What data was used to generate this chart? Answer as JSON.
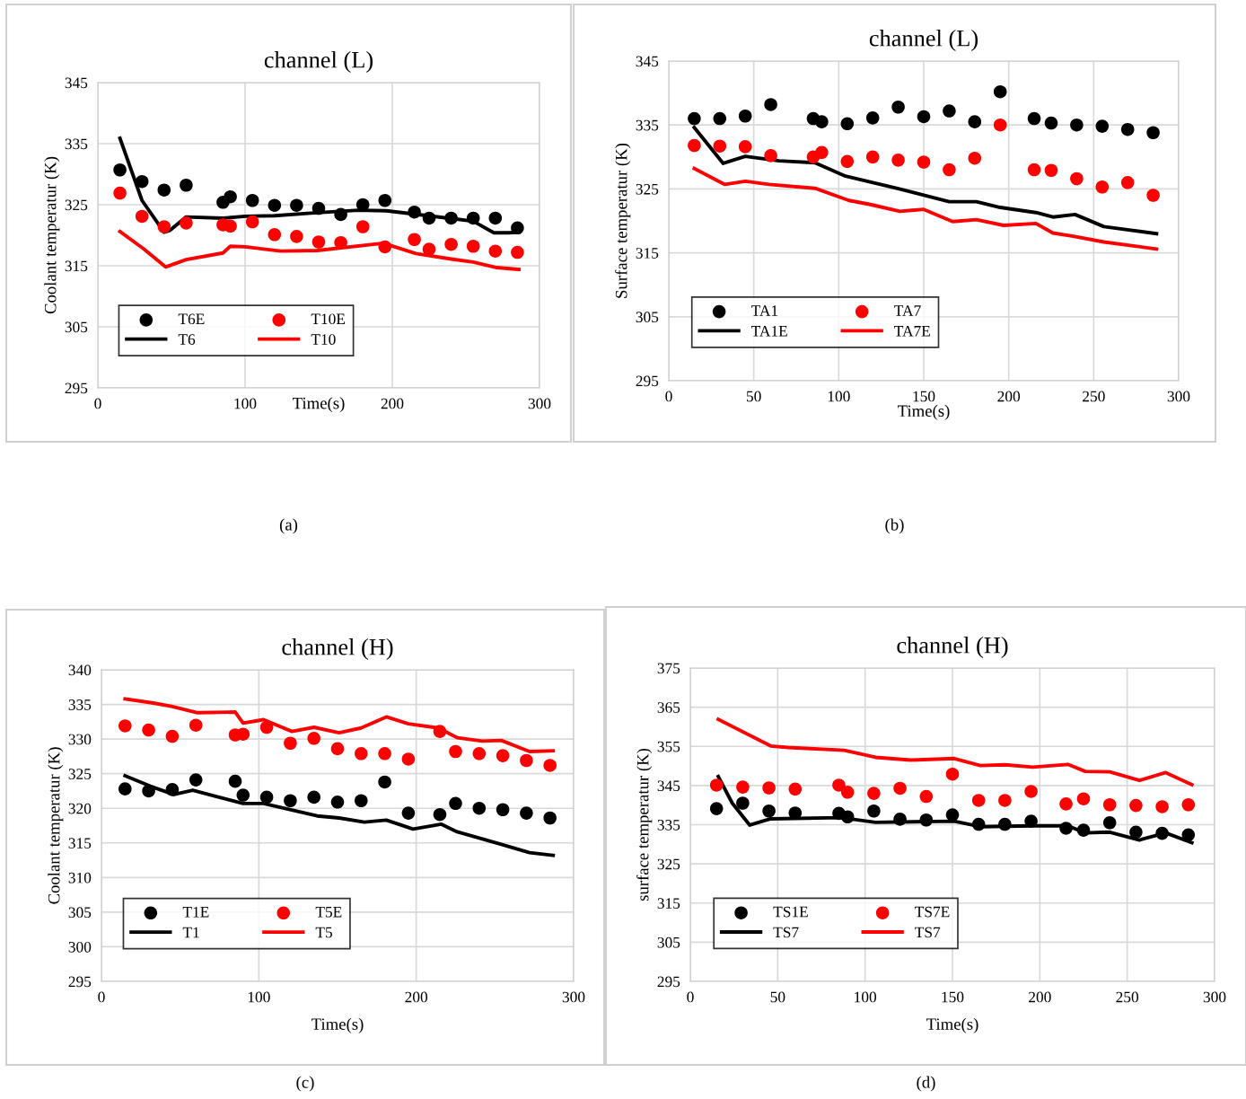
{
  "chart_data": [
    {
      "type": "scatter",
      "title": "channel (L)",
      "xlabel": "Time(s)",
      "ylabel": "Coolant temperatur (K)",
      "xlim": [
        0,
        300
      ],
      "xticks": [
        0,
        100,
        200,
        300
      ],
      "ylim": [
        295,
        345
      ],
      "yticks": [
        295,
        305,
        315,
        325,
        335,
        345
      ],
      "grid": true,
      "legend": "lower left",
      "annotations": [
        "(a)"
      ],
      "series": [
        {
          "name": "T6E",
          "marker": "circle",
          "color": "#000000",
          "x": [
            15,
            30,
            45,
            60,
            85,
            90,
            105,
            120,
            135,
            150,
            165,
            180,
            195,
            215,
            225,
            240,
            255,
            270,
            285
          ],
          "values": [
            330.7,
            328.8,
            327.4,
            328.2,
            325.4,
            326.3,
            325.7,
            324.9,
            324.9,
            324.4,
            323.4,
            325.0,
            325.7,
            323.8,
            322.8,
            322.8,
            322.8,
            322.8,
            321.2
          ]
        },
        {
          "name": "T10E",
          "marker": "circle",
          "color": "#ff0000",
          "x": [
            15,
            30,
            45,
            60,
            85,
            90,
            105,
            120,
            135,
            150,
            165,
            180,
            195,
            215,
            225,
            240,
            255,
            270,
            285
          ],
          "values": [
            326.9,
            323.1,
            321.4,
            322.0,
            321.7,
            321.5,
            322.2,
            320.1,
            319.8,
            318.9,
            318.8,
            321.4,
            318.1,
            319.3,
            317.7,
            318.5,
            318.2,
            317.4,
            317.2
          ]
        },
        {
          "name": "T6",
          "type": "line",
          "marker": "none",
          "color": "#000000",
          "x": [
            15,
            30,
            45,
            49,
            60,
            85,
            100,
            120,
            149,
            177,
            196,
            214,
            255,
            269,
            279,
            286
          ],
          "values": [
            335.9,
            325.7,
            320.5,
            320.8,
            323.0,
            322.8,
            323.1,
            323.2,
            323.7,
            324.1,
            324.0,
            323.5,
            322.3,
            320.4,
            320.4,
            320.5
          ]
        },
        {
          "name": "T10",
          "type": "line",
          "marker": "none",
          "color": "#ff0000",
          "x": [
            15,
            31,
            46,
            60,
            85,
            90,
            100,
            124,
            149,
            194,
            216,
            240,
            255,
            271,
            286
          ],
          "values": [
            320.6,
            317.8,
            314.8,
            316.0,
            317.1,
            318.2,
            318.1,
            317.4,
            317.5,
            318.7,
            317.0,
            316.1,
            315.6,
            314.7,
            314.4
          ]
        }
      ]
    },
    {
      "type": "scatter",
      "title": "channel (L)",
      "xlabel": "Time(s)",
      "ylabel": "Surface temperatur (K)",
      "xlim": [
        0,
        300
      ],
      "xticks": [
        0,
        50,
        100,
        150,
        200,
        250,
        300
      ],
      "ylim": [
        295,
        345
      ],
      "yticks": [
        295,
        305,
        315,
        325,
        335,
        345
      ],
      "grid": true,
      "legend": "lower left",
      "annotations": [
        "(b)"
      ],
      "series": [
        {
          "name": "TA1",
          "marker": "circle",
          "color": "#000000",
          "x": [
            15,
            30,
            45,
            60,
            85,
            90,
            105,
            120,
            135,
            150,
            165,
            180,
            195,
            215,
            225,
            240,
            255,
            270,
            285
          ],
          "values": [
            336.0,
            336.0,
            336.4,
            338.2,
            336.0,
            335.5,
            335.2,
            336.1,
            337.8,
            336.3,
            337.2,
            335.5,
            340.2,
            336.0,
            335.3,
            335.0,
            334.8,
            334.3,
            333.8
          ]
        },
        {
          "name": "TA7",
          "marker": "circle",
          "color": "#ff0000",
          "x": [
            15,
            30,
            45,
            60,
            85,
            90,
            105,
            120,
            135,
            150,
            165,
            180,
            195,
            215,
            225,
            240,
            255,
            270,
            285
          ],
          "values": [
            331.8,
            331.7,
            331.6,
            330.2,
            330.0,
            330.7,
            329.3,
            330.0,
            329.5,
            329.2,
            328.0,
            329.8,
            335.0,
            328.0,
            327.9,
            326.6,
            325.3,
            326.0,
            324.0
          ]
        },
        {
          "name": "TA1E",
          "type": "line",
          "marker": "none",
          "color": "#000000",
          "x": [
            15,
            32,
            45,
            65,
            86,
            104,
            134,
            165,
            181,
            195,
            216,
            226,
            239,
            256,
            287
          ],
          "values": [
            334.6,
            329.0,
            330.1,
            329.4,
            329.1,
            327.0,
            325.1,
            323.0,
            323.0,
            322.1,
            321.3,
            320.6,
            321.0,
            319.1,
            318.0
          ]
        },
        {
          "name": "TA7E",
          "type": "line",
          "marker": "none",
          "color": "#ff0000",
          "x": [
            15,
            33,
            45,
            59,
            86,
            106,
            118,
            136,
            150,
            167,
            181,
            197,
            216,
            226,
            238,
            256,
            287
          ],
          "values": [
            328.2,
            325.7,
            326.2,
            325.7,
            325.1,
            323.2,
            322.6,
            321.5,
            321.8,
            319.9,
            320.2,
            319.3,
            319.6,
            318.1,
            317.6,
            316.7,
            315.6
          ]
        }
      ]
    },
    {
      "type": "scatter",
      "title": "channel (H)",
      "xlabel": "Time(s)",
      "ylabel": "Coolant temperatur (K)",
      "xlim": [
        0,
        300
      ],
      "xticks": [
        0,
        100,
        200,
        300
      ],
      "ylim": [
        295,
        340
      ],
      "yticks": [
        295,
        300,
        305,
        310,
        315,
        320,
        325,
        330,
        335,
        340
      ],
      "grid": true,
      "legend": "lower left",
      "annotations": [
        "(c)"
      ],
      "series": [
        {
          "name": "T1E",
          "marker": "circle",
          "color": "#000000",
          "x": [
            15,
            30,
            45,
            60,
            85,
            90,
            105,
            120,
            135,
            150,
            165,
            180,
            195,
            215,
            225,
            240,
            255,
            270,
            285
          ],
          "values": [
            322.8,
            322.5,
            322.7,
            324.1,
            323.9,
            321.9,
            321.6,
            321.1,
            321.6,
            320.9,
            321.1,
            323.8,
            319.3,
            319.1,
            320.7,
            320.0,
            319.8,
            319.3,
            318.6
          ]
        },
        {
          "name": "T5E",
          "marker": "circle",
          "color": "#ff0000",
          "x": [
            15,
            30,
            45,
            60,
            85,
            90,
            105,
            120,
            135,
            150,
            165,
            180,
            195,
            215,
            225,
            240,
            255,
            270,
            285
          ],
          "values": [
            331.9,
            331.3,
            330.4,
            332.0,
            330.6,
            330.7,
            331.7,
            329.4,
            330.1,
            328.6,
            327.9,
            327.9,
            327.1,
            331.1,
            328.2,
            327.9,
            327.6,
            326.9,
            326.2
          ]
        },
        {
          "name": "T1",
          "type": "line",
          "marker": "none",
          "color": "#000000",
          "x": [
            15,
            31,
            46,
            58,
            73,
            90,
            103,
            137,
            151,
            167,
            181,
            198,
            216,
            226,
            254,
            272,
            287
          ],
          "values": [
            324.7,
            323.2,
            322.0,
            322.6,
            321.7,
            320.7,
            320.7,
            318.9,
            318.6,
            318.0,
            318.3,
            317.0,
            317.7,
            316.6,
            314.8,
            313.6,
            313.2
          ]
        },
        {
          "name": "T5",
          "type": "line",
          "marker": "none",
          "color": "#ff0000",
          "x": [
            15,
            33,
            45,
            61,
            85,
            90,
            103,
            121,
            135,
            151,
            165,
            181,
            195,
            214,
            226,
            242,
            254,
            272,
            287
          ],
          "values": [
            335.8,
            335.2,
            334.7,
            333.8,
            333.9,
            332.3,
            332.8,
            331.1,
            331.7,
            330.9,
            331.6,
            333.2,
            332.2,
            331.6,
            330.2,
            329.7,
            329.8,
            328.2,
            328.3
          ]
        }
      ]
    },
    {
      "type": "scatter",
      "title": "channel (H)",
      "xlabel": "Time(s)",
      "ylabel": "surface temperatur (K)",
      "xlim": [
        0,
        300
      ],
      "xticks": [
        0,
        50,
        100,
        150,
        200,
        250,
        300
      ],
      "ylim": [
        295,
        375
      ],
      "yticks": [
        295,
        305,
        315,
        325,
        335,
        345,
        355,
        365,
        375
      ],
      "grid": true,
      "legend": "lower left",
      "annotations": [
        "(d)"
      ],
      "series": [
        {
          "name": "TS1E",
          "marker": "circle",
          "color": "#000000",
          "x": [
            15,
            30,
            45,
            60,
            85,
            90,
            105,
            120,
            135,
            150,
            165,
            180,
            195,
            215,
            225,
            240,
            255,
            270,
            285
          ],
          "values": [
            339.1,
            340.5,
            338.5,
            338.0,
            337.9,
            337.0,
            338.5,
            336.4,
            336.2,
            337.5,
            335.1,
            335.1,
            335.9,
            334.1,
            333.6,
            335.5,
            333.1,
            332.8,
            332.4
          ]
        },
        {
          "name": "TS7E",
          "marker": "circle",
          "color": "#ff0000",
          "x": [
            15,
            30,
            45,
            60,
            85,
            90,
            105,
            120,
            135,
            150,
            165,
            180,
            195,
            215,
            225,
            240,
            255,
            270,
            285
          ],
          "values": [
            345.1,
            344.6,
            344.4,
            344.1,
            345.1,
            343.3,
            343.0,
            344.3,
            342.2,
            347.9,
            341.2,
            341.2,
            343.5,
            340.3,
            341.6,
            340.1,
            339.9,
            339.6,
            340.1
          ]
        },
        {
          "name": "TS7",
          "type": "line",
          "marker": "none",
          "color": "#000000",
          "x": [
            16,
            24,
            34,
            46,
            86,
            106,
            151,
            166,
            196,
            216,
            226,
            240,
            257,
            272,
            287
          ],
          "values": [
            347.3,
            340.5,
            334.9,
            336.5,
            336.8,
            335.6,
            335.9,
            334.5,
            334.7,
            334.7,
            332.9,
            333.1,
            331.1,
            332.9,
            330.4
          ]
        },
        {
          "name": "TS7",
          "type": "line",
          "marker": "none",
          "color": "#ff0000",
          "x": [
            16,
            46,
            56,
            88,
            106,
            126,
            151,
            166,
            180,
            196,
            216,
            226,
            240,
            257,
            272,
            287
          ],
          "values": [
            361.9,
            355.1,
            354.7,
            354.0,
            352.2,
            351.5,
            351.9,
            350.1,
            350.3,
            349.7,
            350.4,
            348.6,
            348.5,
            346.3,
            348.3,
            345.2
          ]
        }
      ]
    }
  ]
}
